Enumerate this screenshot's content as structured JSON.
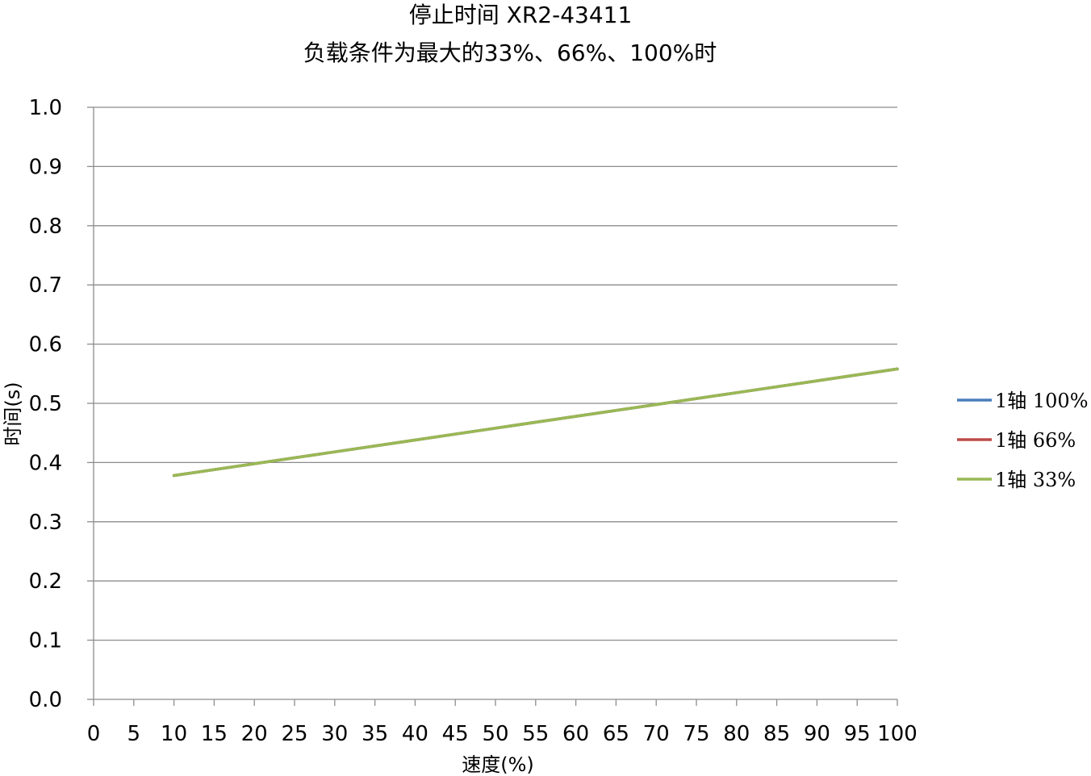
{
  "chart_data": {
    "type": "line",
    "title_line1": "停止时间 XR2-43411",
    "title_line2": "负载条件为最大的33%、66%、100%时",
    "xlabel": "速度(%)",
    "ylabel": "时间(s)",
    "xlim": [
      0,
      100
    ],
    "ylim": [
      0,
      1.0
    ],
    "x_ticks": [
      "0",
      "5",
      "10",
      "15",
      "20",
      "25",
      "30",
      "35",
      "40",
      "45",
      "50",
      "55",
      "60",
      "65",
      "70",
      "75",
      "80",
      "85",
      "90",
      "95",
      "100"
    ],
    "y_ticks": [
      "0.0",
      "0.1",
      "0.2",
      "0.3",
      "0.4",
      "0.5",
      "0.6",
      "0.7",
      "0.8",
      "0.9",
      "1.0"
    ],
    "grid": "horizontal",
    "legend_position": "right",
    "x": [
      10,
      20,
      30,
      40,
      50,
      60,
      70,
      80,
      90,
      100
    ],
    "series": [
      {
        "name": "1轴  100%",
        "color": "#4a7ebb",
        "values": [
          0.378,
          0.398,
          0.418,
          0.438,
          0.458,
          0.478,
          0.498,
          0.518,
          0.538,
          0.558
        ]
      },
      {
        "name": "1轴  66%",
        "color": "#be4b48",
        "values": [
          0.378,
          0.398,
          0.418,
          0.438,
          0.458,
          0.478,
          0.498,
          0.518,
          0.538,
          0.558
        ]
      },
      {
        "name": "1轴  33%",
        "color": "#98b954",
        "values": [
          0.378,
          0.398,
          0.418,
          0.438,
          0.458,
          0.478,
          0.498,
          0.518,
          0.538,
          0.558
        ]
      }
    ]
  }
}
